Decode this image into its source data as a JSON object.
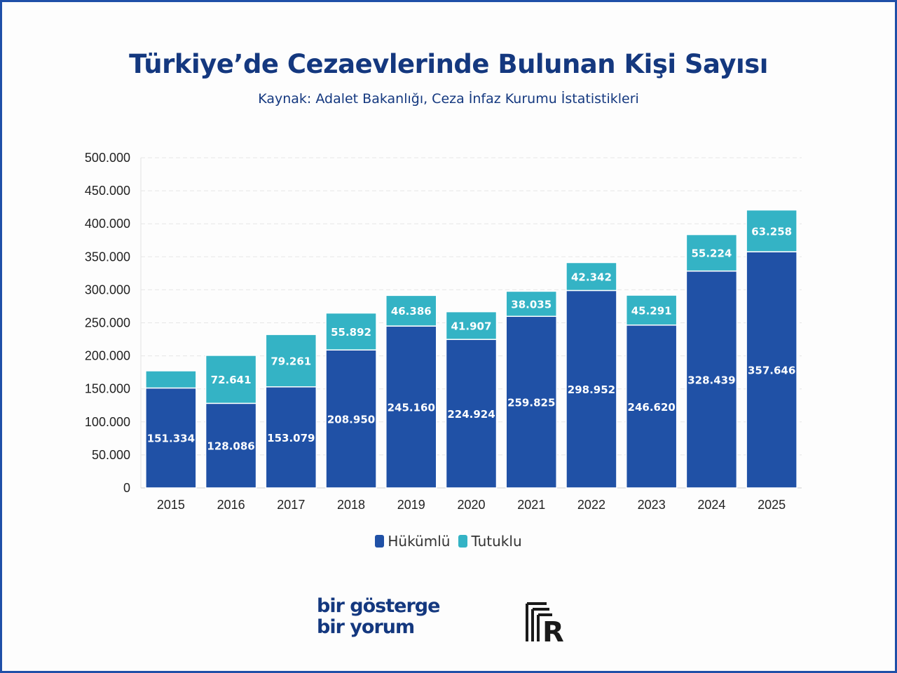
{
  "header": {
    "title": "Türkiye’de Cezaevlerinde Bulunan Kişi Sayısı",
    "subtitle": "Kaynak: Adalet Bakanlığı, Ceza İnfaz Kurumu İstatistikleri"
  },
  "colors": {
    "hukumlu": "#2051a6",
    "tutuklu": "#34b3c5",
    "title": "#14387f"
  },
  "chart_data": {
    "type": "bar",
    "stacked": true,
    "title": "Türkiye’de Cezaevlerinde Bulunan Kişi Sayısı",
    "subtitle": "Kaynak: Adalet Bakanlığı, Ceza İnfaz Kurumu İstatistikleri",
    "xlabel": "",
    "ylabel": "",
    "ylim": [
      0,
      500000
    ],
    "yticks": [
      0,
      50000,
      100000,
      150000,
      200000,
      250000,
      300000,
      350000,
      400000,
      450000,
      500000
    ],
    "ytick_labels": [
      "0",
      "50.000",
      "100.000",
      "150.000",
      "200.000",
      "250.000",
      "300.000",
      "350.000",
      "400.000",
      "450.000",
      "500.000"
    ],
    "grid": true,
    "legend_position": "bottom",
    "categories": [
      "2015",
      "2016",
      "2017",
      "2018",
      "2019",
      "2020",
      "2021",
      "2022",
      "2023",
      "2024",
      "2025"
    ],
    "series": [
      {
        "name": "Hükümlü",
        "values": [
          151334,
          128086,
          153079,
          208950,
          245160,
          224924,
          259825,
          298952,
          246620,
          328439,
          357646
        ],
        "labels": [
          "151.334",
          "128.086",
          "153.079",
          "208.950",
          "245.160",
          "224.924",
          "259.825",
          "298.952",
          "246.620",
          "328.439",
          "357.646"
        ]
      },
      {
        "name": "Tutuklu",
        "values": [
          26000,
          72641,
          79261,
          55892,
          46386,
          41907,
          38035,
          42342,
          45291,
          55224,
          63258
        ],
        "labels": [
          "",
          "72.641",
          "79.261",
          "55.892",
          "46.386",
          "41.907",
          "38.035",
          "42.342",
          "45.291",
          "55.224",
          "63.258"
        ]
      }
    ]
  },
  "legend": {
    "items": [
      "Hükümlü",
      "Tutuklu"
    ]
  },
  "brand": {
    "line1": "bir gösterge",
    "line2": "bir yorum",
    "logo": "R"
  }
}
